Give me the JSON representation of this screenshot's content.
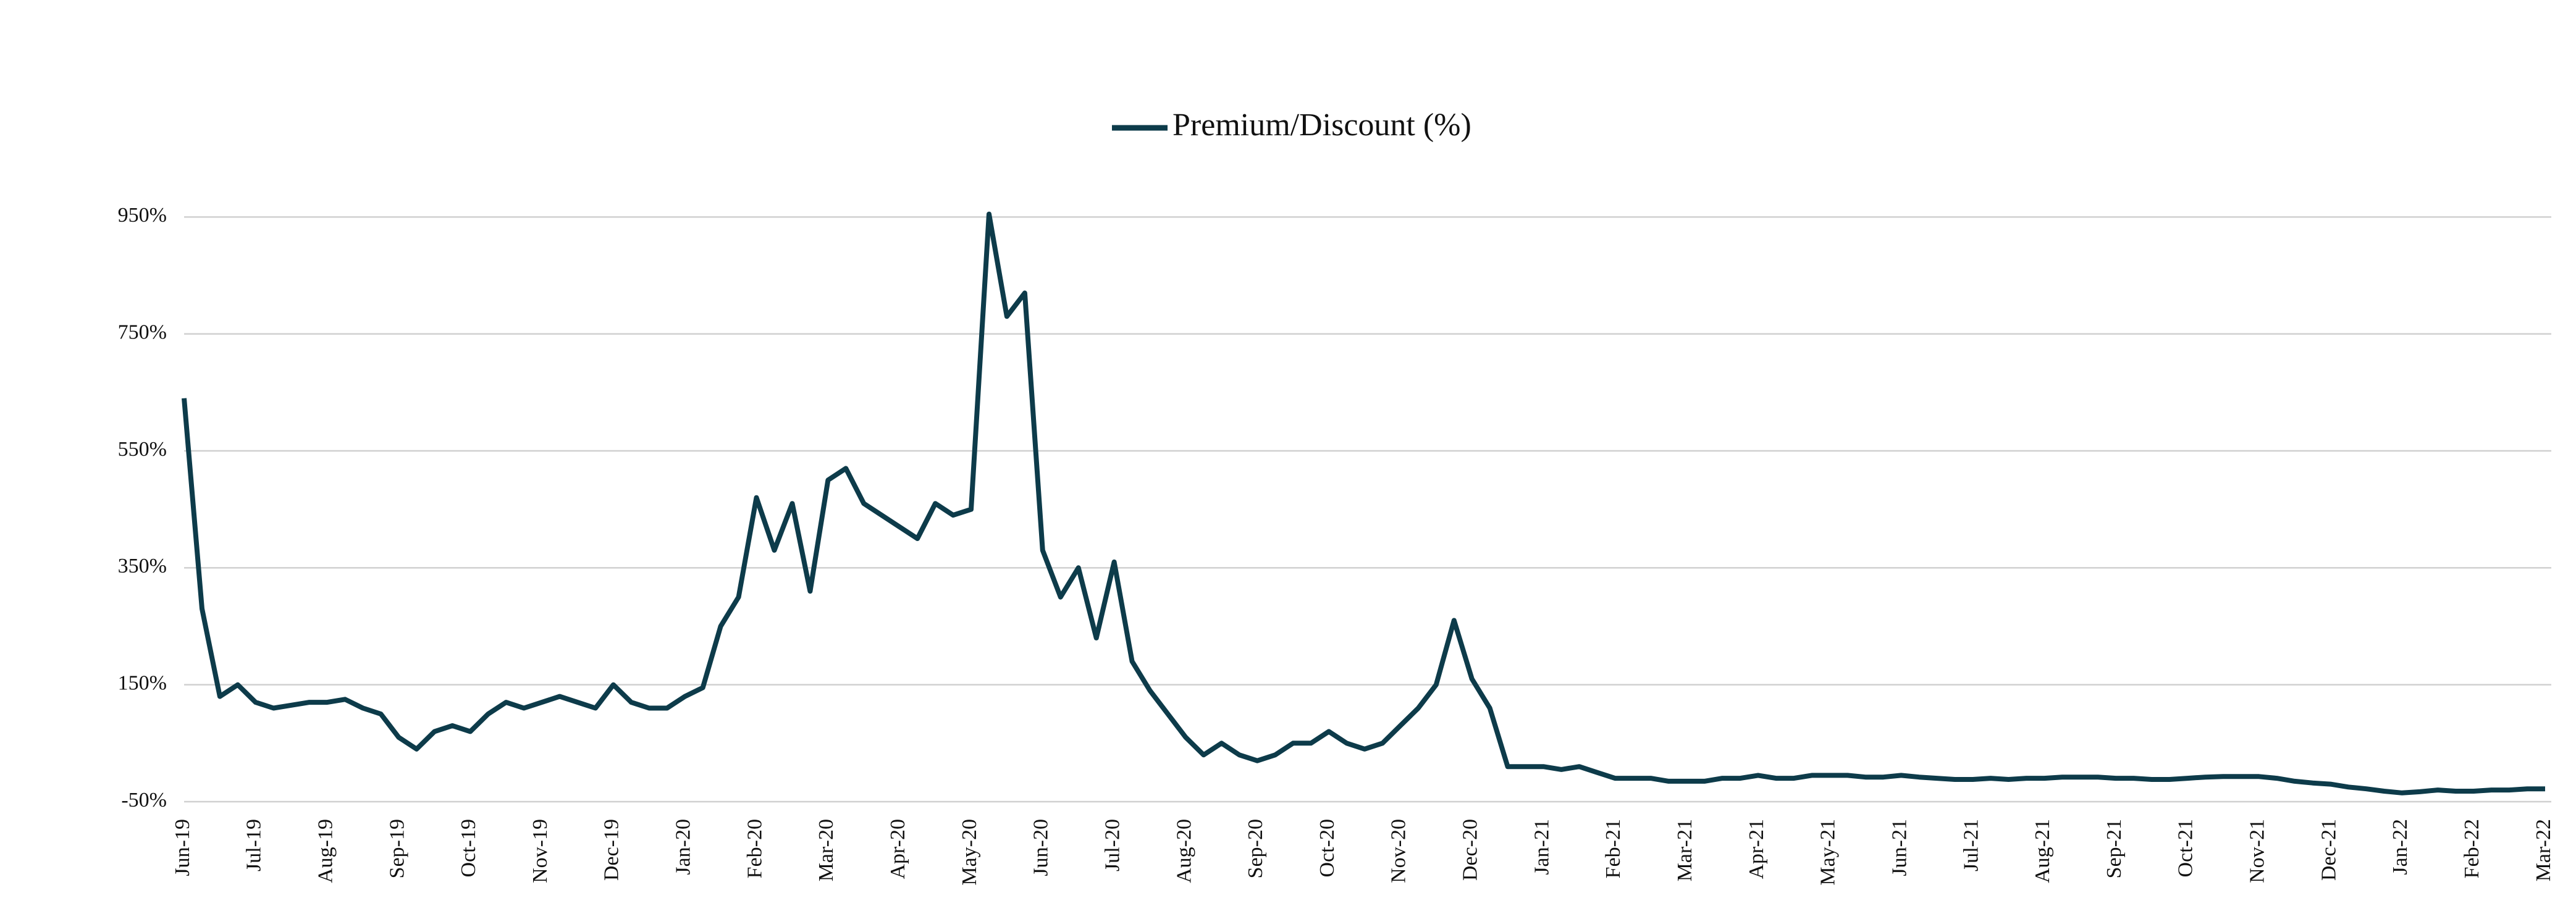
{
  "chart_data": {
    "type": "line",
    "categories": [
      "Jun-19",
      null,
      null,
      null,
      "Jul-19",
      null,
      null,
      null,
      "Aug-19",
      null,
      null,
      null,
      "Sep-19",
      null,
      null,
      null,
      "Oct-19",
      null,
      null,
      null,
      "Nov-19",
      null,
      null,
      null,
      "Dec-19",
      null,
      null,
      null,
      "Jan-20",
      null,
      null,
      null,
      "Feb-20",
      null,
      null,
      null,
      "Mar-20",
      null,
      null,
      null,
      "Apr-20",
      null,
      null,
      null,
      "May-20",
      null,
      null,
      null,
      "Jun-20",
      null,
      null,
      null,
      "Jul-20",
      null,
      null,
      null,
      "Aug-20",
      null,
      null,
      null,
      "Sep-20",
      null,
      null,
      null,
      "Oct-20",
      null,
      null,
      null,
      "Nov-20",
      null,
      null,
      null,
      "Dec-20",
      null,
      null,
      null,
      "Jan-21",
      null,
      null,
      null,
      "Feb-21",
      null,
      null,
      null,
      "Mar-21",
      null,
      null,
      null,
      "Apr-21",
      null,
      null,
      null,
      "May-21",
      null,
      null,
      null,
      "Jun-21",
      null,
      null,
      null,
      "Jul-21",
      null,
      null,
      null,
      "Aug-21",
      null,
      null,
      null,
      "Sep-21",
      null,
      null,
      null,
      "Oct-21",
      null,
      null,
      null,
      "Nov-21",
      null,
      null,
      null,
      "Dec-21",
      null,
      null,
      null,
      "Jan-22",
      null,
      null,
      null,
      "Feb-22",
      null,
      null,
      null,
      "Mar-22"
    ],
    "series": [
      {
        "name": "Premium/Discount (%)",
        "color": "#0d3b4a",
        "values": [
          640,
          280,
          130,
          150,
          120,
          110,
          115,
          120,
          120,
          125,
          110,
          100,
          60,
          40,
          70,
          80,
          70,
          100,
          120,
          110,
          120,
          130,
          120,
          110,
          150,
          120,
          110,
          110,
          130,
          145,
          250,
          300,
          470,
          380,
          460,
          310,
          500,
          520,
          460,
          440,
          420,
          400,
          460,
          440,
          450,
          955,
          780,
          820,
          380,
          300,
          350,
          230,
          360,
          190,
          140,
          100,
          60,
          30,
          50,
          30,
          20,
          30,
          50,
          50,
          70,
          50,
          40,
          50,
          80,
          110,
          150,
          260,
          160,
          110,
          10,
          10,
          10,
          5,
          10,
          0,
          -10,
          -10,
          -10,
          -15,
          -15,
          -15,
          -10,
          -10,
          -5,
          -10,
          -10,
          -5,
          -5,
          -5,
          -8,
          -8,
          -5,
          -8,
          -10,
          -12,
          -12,
          -10,
          -12,
          -10,
          -10,
          -8,
          -8,
          -8,
          -10,
          -10,
          -12,
          -12,
          -10,
          -8,
          -7,
          -7,
          -7,
          -10,
          -15,
          -18,
          -20,
          -25,
          -28,
          -32,
          -35,
          -33,
          -30,
          -32,
          -32,
          -30,
          -30,
          -28,
          -28
        ]
      }
    ],
    "ylim": [
      -50,
      1000
    ],
    "yticks": [
      {
        "value": -50,
        "label": "-50%"
      },
      {
        "value": 150,
        "label": "150%"
      },
      {
        "value": 350,
        "label": "350%"
      },
      {
        "value": 550,
        "label": "550%"
      },
      {
        "value": 750,
        "label": "750%"
      },
      {
        "value": 950,
        "label": "950%"
      }
    ],
    "grid": true,
    "legend": "top"
  }
}
